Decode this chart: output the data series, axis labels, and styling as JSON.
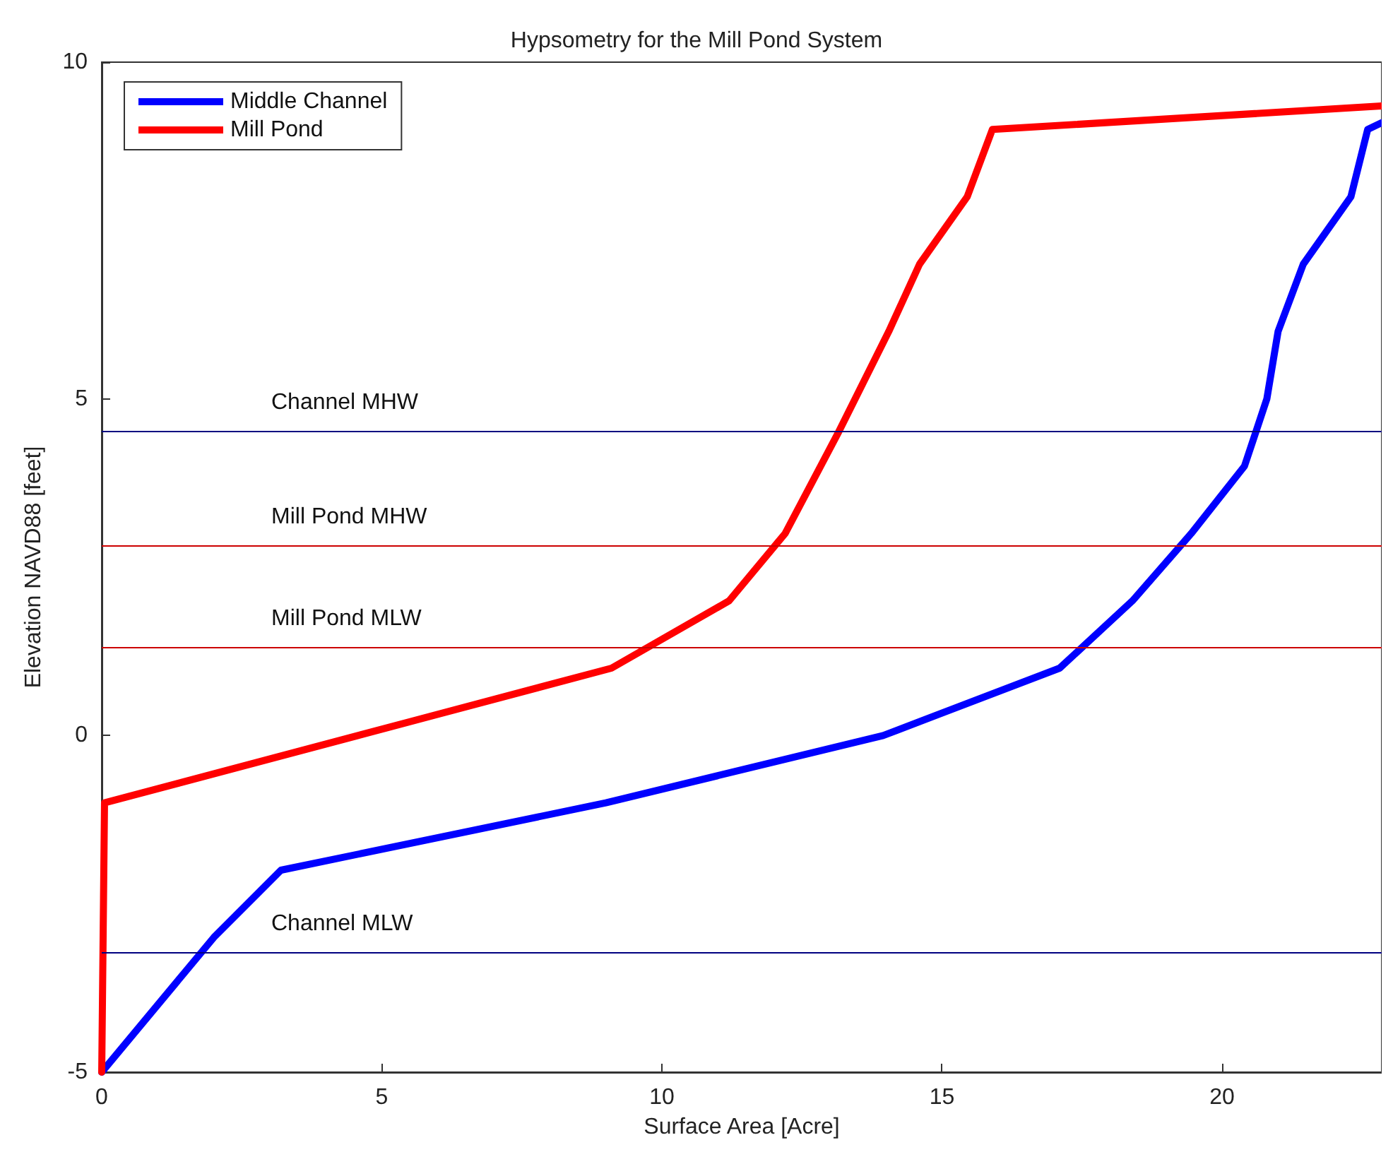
{
  "chart_data": {
    "type": "line",
    "title": "Hypsometry for the Mill Pond System",
    "xlabel": "Surface Area [Acre]",
    "ylabel": "Elevation NAVD88 [feet]",
    "x": [
      0,
      2.0,
      3.2,
      9.0,
      13.95,
      17.1,
      18.4,
      19.45,
      20.4,
      20.8,
      21.0,
      21.45,
      22.3,
      22.6,
      22.85
    ],
    "series": [
      {
        "name": "Middle Channel",
        "color": "#0000ff",
        "values": [
          -5,
          -3.0,
          -2.0,
          -1.0,
          0,
          1.0,
          2.0,
          3.0,
          4.0,
          5.0,
          6.0,
          7.0,
          8.0,
          9.0,
          9.1
        ]
      },
      {
        "name": "Mill Pond",
        "color": "#ff0000",
        "x": [
          0,
          0.05,
          9.1,
          11.2,
          12.2,
          13.15,
          14.05,
          14.6,
          15.45,
          15.9,
          22.85
        ],
        "values": [
          -5,
          -1.0,
          1.0,
          2.0,
          3.0,
          4.5,
          6.0,
          7.0,
          8.0,
          9.0,
          9.35
        ]
      }
    ],
    "xlim": [
      0,
      22.85
    ],
    "ylim": [
      -5,
      10
    ],
    "xticks": [
      0,
      5,
      10,
      15,
      20
    ],
    "yticks": [
      -5,
      0,
      5,
      10
    ],
    "ref_lines": [
      {
        "axis": "y",
        "value": 4.52,
        "label": "Channel MHW",
        "color": "#000080"
      },
      {
        "axis": "y",
        "value": 2.82,
        "label": "Mill Pond MHW",
        "color": "#cc0000"
      },
      {
        "axis": "y",
        "value": 1.31,
        "label": "Mill Pond MLW",
        "color": "#cc0000"
      },
      {
        "axis": "y",
        "value": -3.22,
        "label": "Channel MLW",
        "color": "#000080"
      }
    ],
    "grid": false,
    "legend": "top left",
    "marker": "none",
    "line_style": "solid"
  }
}
